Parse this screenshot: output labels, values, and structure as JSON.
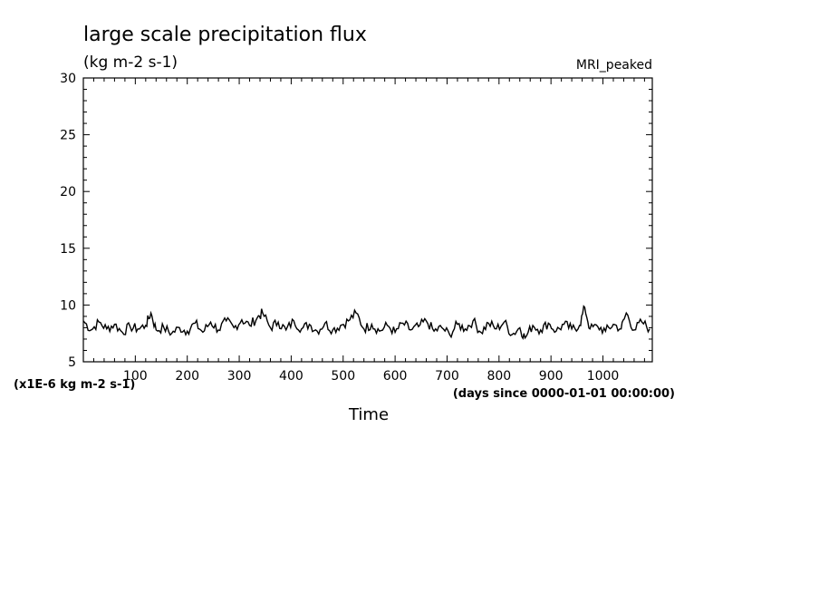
{
  "chart_data": {
    "type": "line",
    "title": "large scale precipitation flux",
    "subtitle": "(kg m-2 s-1)",
    "dataset_label": "MRI_peaked",
    "y_scale_label": "(x1E-6 kg m-2 s-1)",
    "x_units_label": "(days since 0000-01-01 00:00:00)",
    "xlabel": "Time",
    "ylabel": "",
    "xlim": [
      0,
      1095
    ],
    "ylim": [
      5,
      30
    ],
    "x_ticks": [
      100,
      200,
      300,
      400,
      500,
      600,
      700,
      800,
      900,
      1000
    ],
    "y_ticks": [
      5,
      10,
      15,
      20,
      25,
      30
    ],
    "grid": false,
    "line_color": "#000000",
    "series": [
      {
        "x": [
          0,
          15,
          30,
          45,
          60,
          75,
          90,
          105,
          120,
          130,
          140,
          155,
          170,
          185,
          200,
          215,
          230,
          245,
          260,
          275,
          290,
          305,
          320,
          335,
          345,
          360,
          375,
          390,
          405,
          420,
          435,
          450,
          465,
          480,
          495,
          510,
          525,
          540,
          555,
          570,
          585,
          600,
          615,
          630,
          645,
          660,
          675,
          690,
          705,
          720,
          735,
          750,
          765,
          780,
          795,
          810,
          825,
          840,
          850,
          865,
          880,
          895,
          910,
          925,
          940,
          955,
          965,
          975,
          990,
          1005,
          1020,
          1035,
          1045,
          1060,
          1075,
          1090
        ],
        "y": [
          8.6,
          7.8,
          8.5,
          7.9,
          8.3,
          7.6,
          8.1,
          7.9,
          8.2,
          9.3,
          7.8,
          8.0,
          7.5,
          8.0,
          7.7,
          8.4,
          7.6,
          8.5,
          7.8,
          8.6,
          8.0,
          8.7,
          8.2,
          8.9,
          9.3,
          8.0,
          8.5,
          7.8,
          8.6,
          7.9,
          8.3,
          7.7,
          8.4,
          7.8,
          8.2,
          8.6,
          9.3,
          7.9,
          8.3,
          7.7,
          8.2,
          7.6,
          8.4,
          7.8,
          8.1,
          8.6,
          7.7,
          8.0,
          7.4,
          8.3,
          7.9,
          8.6,
          7.6,
          8.4,
          7.9,
          8.5,
          7.4,
          8.0,
          7.1,
          8.2,
          7.8,
          8.4,
          7.7,
          8.3,
          7.9,
          8.2,
          9.8,
          7.9,
          8.1,
          7.7,
          8.3,
          7.9,
          9.3,
          7.8,
          8.5,
          7.9
        ]
      }
    ]
  }
}
